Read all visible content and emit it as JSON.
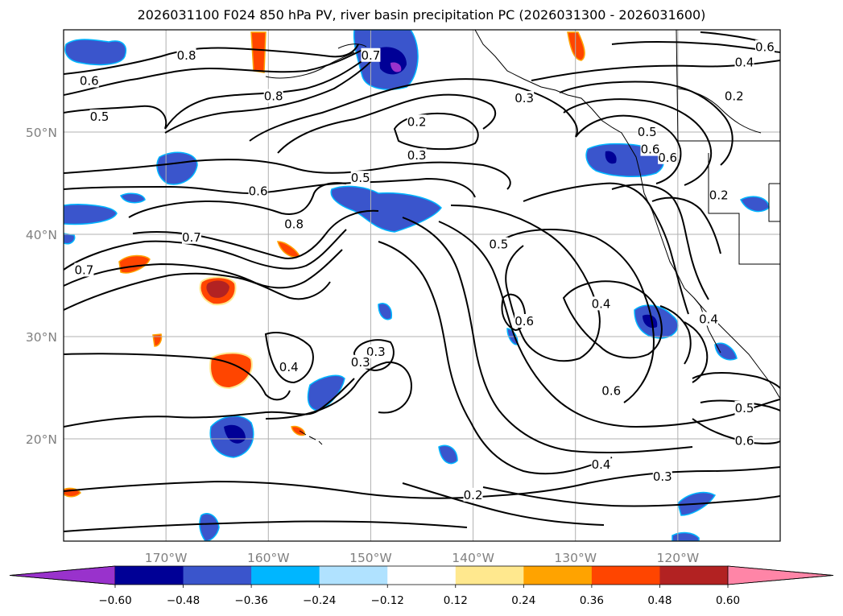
{
  "title": "2026031100 F024 850 hPa PV, river basin precipitation PC (2026031300 - 2026031600)",
  "colors": {
    "frame": "#000000",
    "grid": "#b0b0b0",
    "tick_label": "#808080",
    "contour": "#000000"
  },
  "map": {
    "projection": "lat-lon",
    "lon_range": [
      -180,
      -110
    ],
    "lat_range": [
      10,
      60
    ],
    "gridlines": true,
    "lon_ticks": [
      {
        "value": -170,
        "label": "170°W"
      },
      {
        "value": -160,
        "label": "160°W"
      },
      {
        "value": -150,
        "label": "150°W"
      },
      {
        "value": -140,
        "label": "140°W"
      },
      {
        "value": -130,
        "label": "130°W"
      },
      {
        "value": -120,
        "label": "120°W"
      }
    ],
    "lat_ticks": [
      {
        "value": 50,
        "label": "50°N"
      },
      {
        "value": 40,
        "label": "40°N"
      },
      {
        "value": 30,
        "label": "30°N"
      },
      {
        "value": 20,
        "label": "20°N"
      }
    ],
    "contour_labels": [
      {
        "text": "0.8",
        "lon": -168,
        "lat": 57.5
      },
      {
        "text": "0.6",
        "lon": -177.5,
        "lat": 55
      },
      {
        "text": "0.5",
        "lon": -176.5,
        "lat": 51.5
      },
      {
        "text": "0.8",
        "lon": -159.5,
        "lat": 53.5
      },
      {
        "text": "0.2",
        "lon": -145.5,
        "lat": 51
      },
      {
        "text": "0.3",
        "lon": -145.5,
        "lat": 47.7
      },
      {
        "text": "0.5",
        "lon": -151,
        "lat": 45.5
      },
      {
        "text": "0.6",
        "lon": -161,
        "lat": 44.2
      },
      {
        "text": "0.8",
        "lon": -157.5,
        "lat": 41
      },
      {
        "text": "0.7",
        "lon": -167.5,
        "lat": 39.7
      },
      {
        "text": "0.7",
        "lon": -178,
        "lat": 36.5
      },
      {
        "text": "0.4",
        "lon": -158,
        "lat": 27
      },
      {
        "text": "0.3",
        "lon": -149.5,
        "lat": 28.5
      },
      {
        "text": "0.3",
        "lon": -151,
        "lat": 27.5
      },
      {
        "text": "0.5",
        "lon": -137.5,
        "lat": 39
      },
      {
        "text": "0.6",
        "lon": -135,
        "lat": 31.5
      },
      {
        "text": "0.4",
        "lon": -127.5,
        "lat": 33.2
      },
      {
        "text": "0.6",
        "lon": -126.5,
        "lat": 24.7
      },
      {
        "text": "0.4",
        "lon": -117,
        "lat": 31.7
      },
      {
        "text": "0.5",
        "lon": -113.5,
        "lat": 23
      },
      {
        "text": "0.6",
        "lon": -113.5,
        "lat": 19.8
      },
      {
        "text": "0.4",
        "lon": -127.5,
        "lat": 17.5
      },
      {
        "text": "0.3",
        "lon": -121.5,
        "lat": 16.3
      },
      {
        "text": "0.2",
        "lon": -140,
        "lat": 14.5
      },
      {
        "text": "0.3",
        "lon": -135,
        "lat": 53.3
      },
      {
        "text": "0.5",
        "lon": -123,
        "lat": 50
      },
      {
        "text": "0.6",
        "lon": -111.5,
        "lat": 58.3
      },
      {
        "text": "0.4",
        "lon": -113.5,
        "lat": 56.8
      },
      {
        "text": "0.2",
        "lon": -114.5,
        "lat": 53.5
      },
      {
        "text": "0.2",
        "lon": -116,
        "lat": 43.8
      },
      {
        "text": "0.6",
        "lon": -121,
        "lat": 47.5
      },
      {
        "text": "0.6",
        "lon": -122.7,
        "lat": 48.3
      },
      {
        "text": "0.7",
        "lon": -150,
        "lat": 57.5
      }
    ]
  },
  "colorbar": {
    "colors": [
      "#9932cc",
      "#000096",
      "#3a55cc",
      "#00b6ff",
      "#b0e2ff",
      "#ffffff",
      "#ffe88e",
      "#ffa300",
      "#ff4500",
      "#b22222",
      "#ff85a7"
    ],
    "ticks": [
      -0.6,
      -0.48,
      -0.36,
      -0.24,
      -0.12,
      0.12,
      0.24,
      0.36,
      0.48,
      0.6
    ],
    "tick_labels": [
      "−0.60",
      "−0.48",
      "−0.36",
      "−0.24",
      "−0.12",
      "0.12",
      "0.24",
      "0.36",
      "0.48",
      "0.60"
    ],
    "extend": "both"
  }
}
